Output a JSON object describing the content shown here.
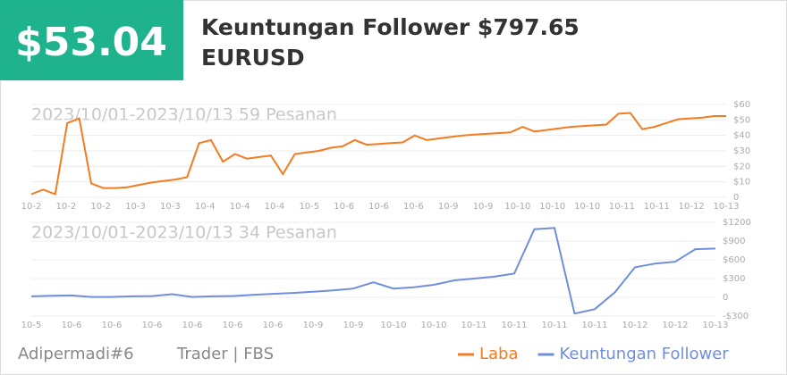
{
  "header": {
    "amount": "$53.04",
    "title": "Keuntungan Follower $797.65",
    "symbol": "EURUSD"
  },
  "chart_data": [
    {
      "type": "line",
      "subtitle": "2023/10/01-2023/10/13 59 Pesanan",
      "series": [
        {
          "name": "Laba",
          "color": "#f47b20",
          "values": [
            2,
            5,
            2,
            48,
            51,
            9,
            6,
            6,
            6.5,
            8,
            9.5,
            10.5,
            11.5,
            13,
            35,
            37,
            23,
            28,
            25,
            26,
            27,
            15,
            28,
            29,
            30,
            32,
            33,
            37,
            34,
            34.5,
            35,
            35.5,
            40,
            37,
            38,
            39,
            40,
            40.5,
            41,
            41.5,
            42,
            45.5,
            42.5,
            43.5,
            44.5,
            45.5,
            46,
            46.5,
            47,
            54,
            54.5,
            44,
            45.5,
            48,
            50.5,
            51,
            51.5,
            52.5,
            52.5
          ]
        }
      ],
      "xtick_labels": [
        "10-2",
        "10-2",
        "10-2",
        "10-3",
        "10-3",
        "10-4",
        "10-4",
        "10-4",
        "10-5",
        "10-6",
        "10-6",
        "10-6",
        "10-9",
        "10-9",
        "10-10",
        "10-10",
        "10-10",
        "10-11",
        "10-11",
        "10-12",
        "10-13"
      ],
      "ylim": [
        0,
        60
      ],
      "yticks": [
        0,
        {
          "value": 10,
          "label": "$10"
        },
        {
          "value": 20,
          "label": "$20"
        },
        {
          "value": 30,
          "label": "$30"
        },
        {
          "value": 40,
          "label": "$40"
        },
        {
          "value": 50,
          "label": "$50"
        },
        {
          "value": 60,
          "label": "$60"
        }
      ],
      "grid": true
    },
    {
      "type": "line",
      "subtitle": "2023/10/01-2023/10/13 34 Pesanan",
      "series": [
        {
          "name": "Keuntungan Follower",
          "color": "#6f8fdc",
          "values": [
            15,
            25,
            30,
            5,
            5,
            15,
            20,
            50,
            5,
            15,
            20,
            40,
            55,
            70,
            90,
            110,
            140,
            240,
            140,
            160,
            200,
            270,
            300,
            330,
            380,
            1090,
            1110,
            -260,
            -190,
            80,
            480,
            540,
            570,
            770,
            780
          ]
        }
      ],
      "xtick_labels": [
        "10-5",
        "10-6",
        "10-6",
        "10-6",
        "10-6",
        "10-6",
        "10-6",
        "10-9",
        "10-9",
        "10-10",
        "10-10",
        "10-11",
        "10-11",
        "10-11",
        "10-11",
        "10-12",
        "10-12",
        "10-13"
      ],
      "ylim": [
        -300,
        1200
      ],
      "yticks": [
        {
          "value": -300,
          "label": "-$300"
        },
        0,
        {
          "value": 300,
          "label": "$300"
        },
        {
          "value": 600,
          "label": "$600"
        },
        {
          "value": 900,
          "label": "$900"
        },
        {
          "value": 1200,
          "label": "$1200"
        }
      ],
      "grid": true
    }
  ],
  "footer": {
    "user": "Adipermadi#6",
    "role": "Trader | FBS"
  }
}
